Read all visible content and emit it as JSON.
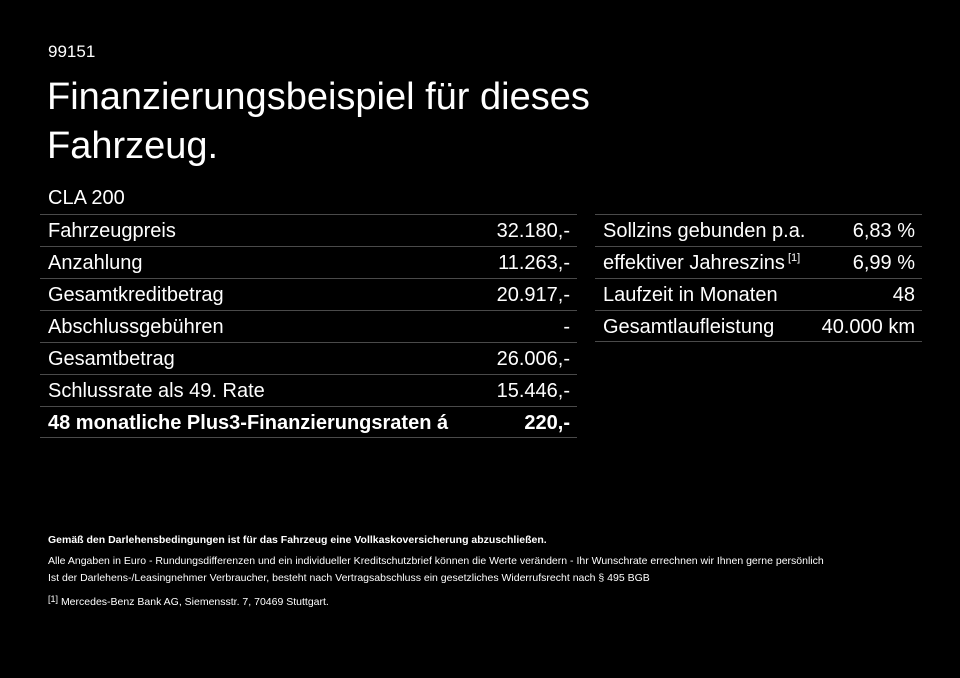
{
  "header": {
    "code": "99151",
    "title_lines": [
      "Finanzierungsbeispiel für dieses",
      "Fahrzeug."
    ],
    "model": "CLA 200"
  },
  "left_table": {
    "rows": [
      {
        "label": "Fahrzeugpreis",
        "value": "32.180,-"
      },
      {
        "label": "Anzahlung",
        "value": "11.263,-"
      },
      {
        "label": "Gesamtkreditbetrag",
        "value": "20.917,-"
      },
      {
        "label": "Abschlussgebühren",
        "value": "-"
      },
      {
        "label": "Gesamtbetrag",
        "value": "26.006,-"
      },
      {
        "label": "Schlussrate als 49. Rate",
        "value": "15.446,-"
      },
      {
        "label": "48 monatliche Plus3-Finanzierungsraten á",
        "value": "220,-"
      }
    ]
  },
  "right_table": {
    "rows": [
      {
        "label": "Sollzins gebunden p.a.",
        "value": "6,83 %"
      },
      {
        "label": "effektiver Jahreszins",
        "note": "[1]",
        "value": "6,99 %"
      },
      {
        "label": "Laufzeit in Monaten",
        "value": "48"
      },
      {
        "label": "Gesamtlaufleistung",
        "value": "40.000 km"
      }
    ]
  },
  "footer": {
    "notice": "Gemäß den Darlehensbedingungen ist für das Fahrzeug eine Vollkaskoversicherung abzuschließen.",
    "lines": [
      "Alle Angaben in Euro - Rundungsdifferenzen und ein individueller Kreditschutzbrief können die Werte verändern - Ihr Wunschrate errechnen wir Ihnen gerne persönlich",
      "Ist der Darlehens-/Leasingnehmer Verbraucher, besteht nach Vertragsabschluss ein gesetzliches Widerrufsrecht nach § 495 BGB"
    ],
    "footnote": {
      "marker": "[1]",
      "text": "Mercedes-Benz Bank AG, Siemensstr. 7, 70469 Stuttgart."
    }
  }
}
